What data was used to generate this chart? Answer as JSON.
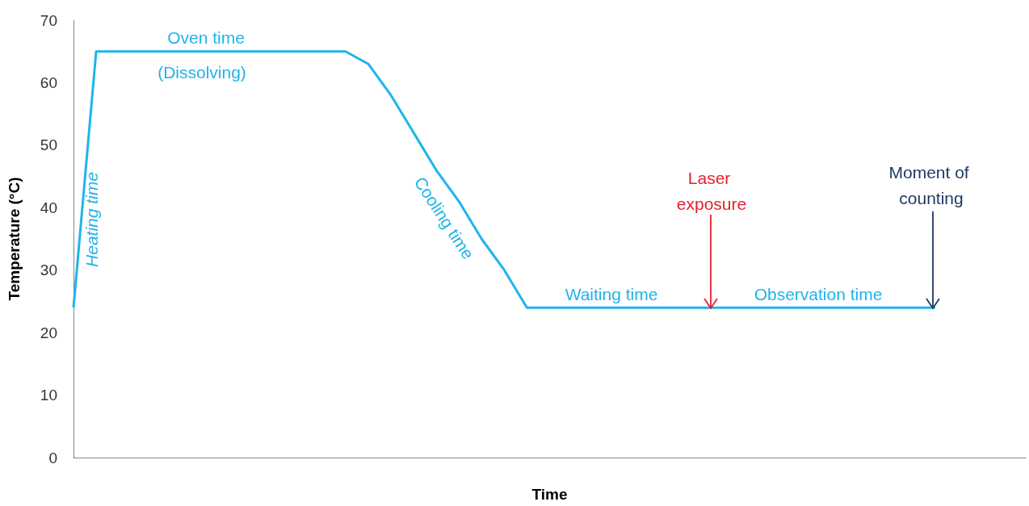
{
  "chart_data": {
    "type": "line",
    "xlabel": "Time",
    "ylabel": "Temperature (°C)",
    "categories": [
      null,
      null,
      null,
      null,
      null,
      null,
      null,
      null,
      null,
      null,
      null,
      null,
      null,
      null,
      null,
      null,
      null,
      null,
      null,
      null,
      null,
      null,
      null,
      null,
      null,
      null,
      null,
      null,
      null,
      null,
      null,
      null,
      null,
      null,
      null,
      null,
      null,
      null,
      null,
      null,
      null,
      null,
      null
    ],
    "series": [
      {
        "color": "#1fb4ea",
        "values": [
          24,
          65,
          65,
          65,
          65,
          65,
          65,
          65,
          65,
          65,
          65,
          65,
          65,
          63,
          58,
          52,
          46,
          41,
          35,
          30,
          24,
          24,
          24,
          24,
          24,
          24,
          24,
          24,
          24,
          24,
          24,
          24,
          24,
          24,
          24,
          24,
          24,
          24,
          24,
          null,
          null,
          null,
          null
        ]
      }
    ],
    "ylim": [
      0,
      70
    ],
    "yticks": [
      0,
      10,
      20,
      30,
      40,
      50,
      60,
      70
    ],
    "grid": false,
    "annotations": [
      "Oven time",
      "(Dissolving)",
      "Heating time",
      "Cooling time",
      "Waiting time",
      "Observation time",
      "Laser exposure",
      "Moment of counting"
    ]
  }
}
